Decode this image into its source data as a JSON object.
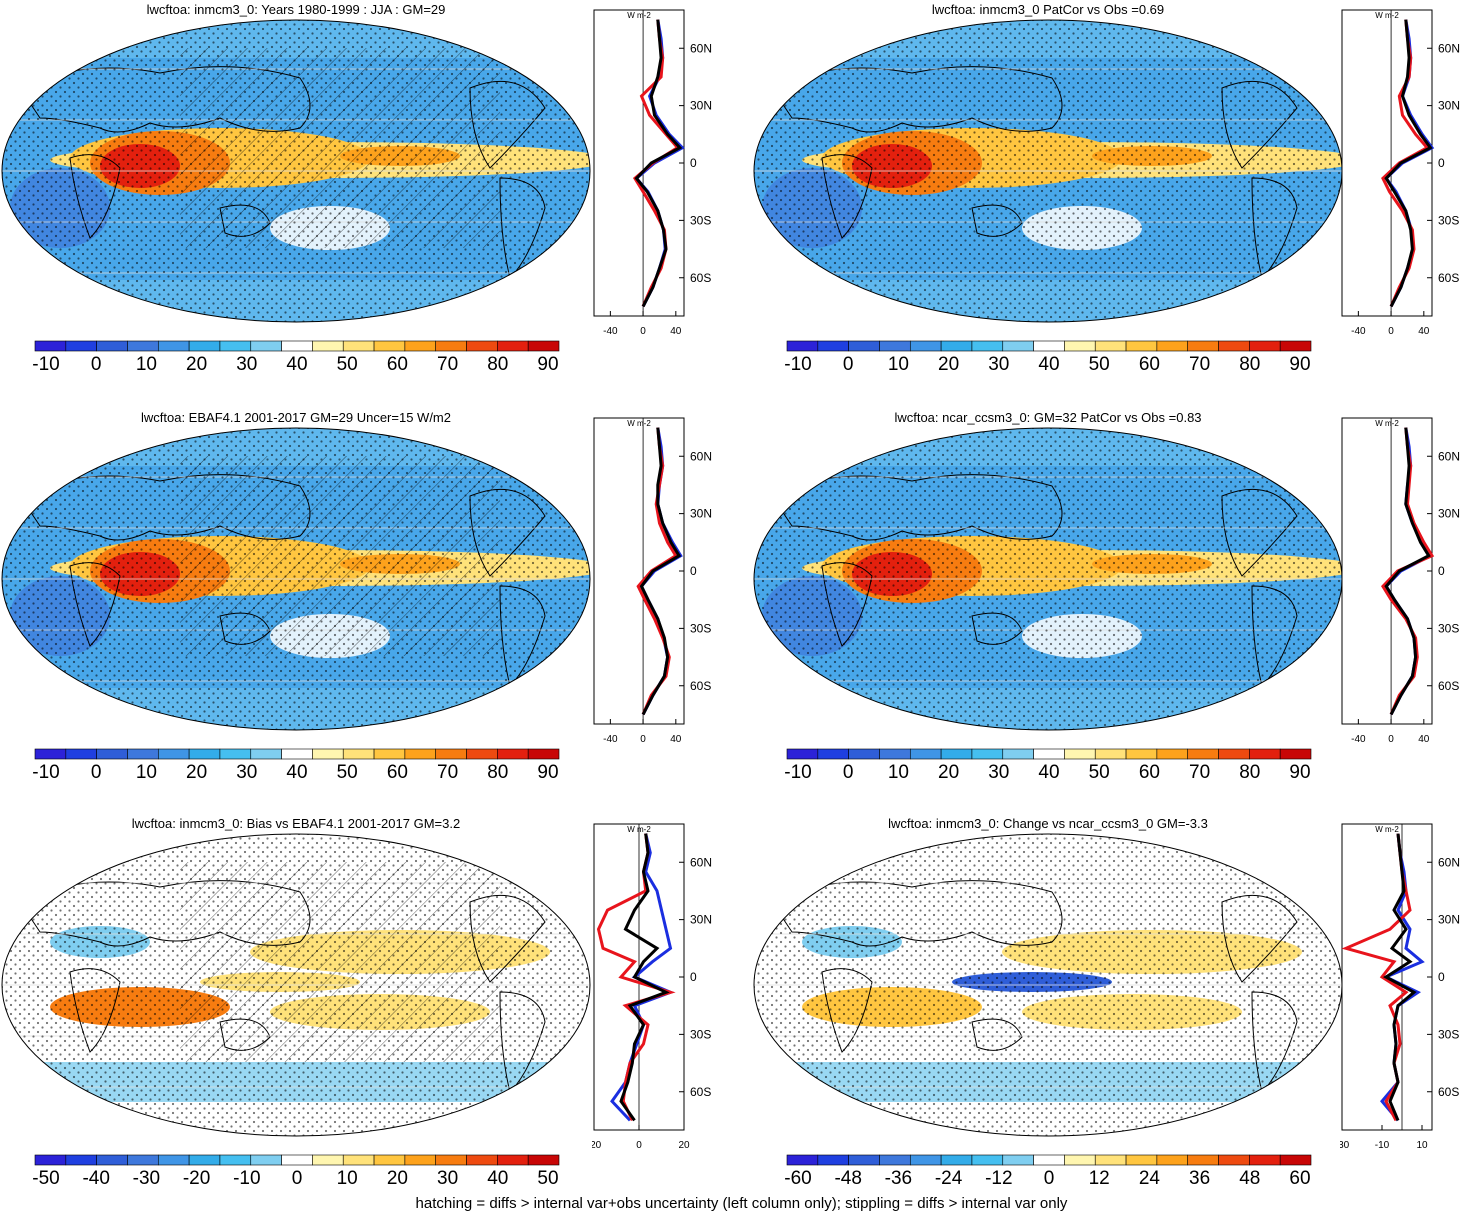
{
  "colors": {
    "palette": [
      "#2c22d8",
      "#1f3fe0",
      "#2f5ed8",
      "#3e78dc",
      "#3f95e6",
      "#33ace9",
      "#45bff0",
      "#7fcef0",
      "#ffffff",
      "#fff6b0",
      "#ffe27a",
      "#ffc640",
      "#fda21c",
      "#f77c10",
      "#ee4a10",
      "#e3200e",
      "#c80606"
    ],
    "ocean_blue": "#4aa8e8",
    "obs_line": "#000000",
    "model_line": "#e8141c",
    "ref_line": "#1a2ee0"
  },
  "panels": [
    {
      "id": "p1",
      "title": "lwcftoa: inmcm3_0: Years 1980-1999 : JJA : GM=29",
      "colorbar_labels": [
        "-10",
        "0",
        "10",
        "20",
        "30",
        "40",
        "50",
        "60",
        "70",
        "80",
        "90"
      ],
      "zonal_x_ticks": [
        "-40",
        "0",
        "40"
      ],
      "zonal_y_ticks": [
        "60N",
        "30N",
        "0",
        "30S",
        "60S"
      ],
      "zonal_unit": "W m-2",
      "chart_data": {
        "type": "heatmap",
        "variable": "lwcftoa",
        "lat_ticks": [
          "60N",
          "30N",
          "0",
          "30S",
          "60S"
        ],
        "xlim": [
          -60,
          50
        ],
        "lats": [
          75,
          65,
          55,
          45,
          35,
          25,
          15,
          8,
          0,
          -8,
          -15,
          -25,
          -35,
          -45,
          -55,
          -65,
          -75
        ],
        "series": [
          {
            "color": "black",
            "values": [
              18,
              20,
              22,
              18,
              10,
              14,
              30,
              45,
              10,
              -8,
              5,
              18,
              25,
              28,
              20,
              12,
              0
            ]
          },
          {
            "color": "red",
            "values": [
              18,
              20,
              24,
              22,
              -2,
              8,
              28,
              42,
              12,
              -10,
              0,
              14,
              26,
              28,
              22,
              10,
              0
            ]
          },
          {
            "color": "blue",
            "values": [
              18,
              22,
              24,
              20,
              8,
              16,
              32,
              48,
              14,
              -8,
              6,
              18,
              25,
              27,
              20,
              12,
              0
            ]
          }
        ]
      }
    },
    {
      "id": "p2",
      "title": "lwcftoa: inmcm3_0 PatCor vs Obs =0.69",
      "colorbar_labels": [
        "-10",
        "0",
        "10",
        "20",
        "30",
        "40",
        "50",
        "60",
        "70",
        "80",
        "90"
      ],
      "zonal_x_ticks": [
        "-40",
        "0",
        "40"
      ],
      "zonal_y_ticks": [
        "60N",
        "30N",
        "0",
        "30S",
        "60S"
      ],
      "zonal_unit": "W m-2",
      "chart_data": {
        "type": "heatmap",
        "variable": "lwcftoa",
        "lat_ticks": [
          "60N",
          "30N",
          "0",
          "30S",
          "60S"
        ],
        "xlim": [
          -60,
          50
        ],
        "lats": [
          75,
          65,
          55,
          45,
          35,
          25,
          15,
          8,
          0,
          -8,
          -15,
          -25,
          -35,
          -45,
          -55,
          -65,
          -75
        ],
        "series": [
          {
            "color": "black",
            "values": [
              18,
              20,
              22,
              20,
              14,
              22,
              36,
              48,
              12,
              -6,
              4,
              18,
              24,
              26,
              20,
              12,
              0
            ]
          },
          {
            "color": "red",
            "values": [
              18,
              20,
              24,
              22,
              10,
              14,
              30,
              44,
              10,
              -10,
              -2,
              14,
              26,
              28,
              22,
              10,
              0
            ]
          },
          {
            "color": "blue",
            "values": [
              18,
              22,
              24,
              22,
              14,
              24,
              38,
              50,
              14,
              -6,
              6,
              18,
              25,
              27,
              20,
              12,
              0
            ]
          }
        ]
      }
    },
    {
      "id": "p3",
      "title": "lwcftoa: EBAF4.1 2001-2017 GM=29 Uncer=15 W/m2",
      "colorbar_labels": [
        "-10",
        "0",
        "10",
        "20",
        "30",
        "40",
        "50",
        "60",
        "70",
        "80",
        "90"
      ],
      "zonal_x_ticks": [
        "-40",
        "0",
        "40"
      ],
      "zonal_y_ticks": [
        "60N",
        "30N",
        "0",
        "30S",
        "60S"
      ],
      "zonal_unit": "W m-2",
      "chart_data": {
        "type": "heatmap",
        "variable": "lwcftoa",
        "lat_ticks": [
          "60N",
          "30N",
          "0",
          "30S",
          "60S"
        ],
        "xlim": [
          -60,
          50
        ],
        "lats": [
          75,
          65,
          55,
          45,
          35,
          25,
          15,
          8,
          0,
          -8,
          -15,
          -25,
          -35,
          -45,
          -55,
          -65,
          -75
        ],
        "series": [
          {
            "color": "black",
            "values": [
              18,
              20,
              22,
              18,
              18,
              24,
              34,
              44,
              12,
              -2,
              6,
              18,
              26,
              30,
              26,
              12,
              0
            ]
          },
          {
            "color": "red",
            "values": [
              18,
              20,
              24,
              20,
              16,
              20,
              30,
              40,
              10,
              -6,
              2,
              14,
              24,
              32,
              28,
              10,
              0
            ]
          },
          {
            "color": "blue",
            "values": [
              18,
              22,
              24,
              20,
              18,
              24,
              36,
              46,
              14,
              -2,
              6,
              18,
              25,
              30,
              26,
              12,
              0
            ]
          }
        ]
      }
    },
    {
      "id": "p4",
      "title": "lwcftoa: ncar_ccsm3_0: GM=32 PatCor vs Obs =0.83",
      "colorbar_labels": [
        "-10",
        "0",
        "10",
        "20",
        "30",
        "40",
        "50",
        "60",
        "70",
        "80",
        "90"
      ],
      "zonal_x_ticks": [
        "-40",
        "0",
        "40"
      ],
      "zonal_y_ticks": [
        "60N",
        "30N",
        "0",
        "30S",
        "60S"
      ],
      "zonal_unit": "W m-2",
      "chart_data": {
        "type": "heatmap",
        "variable": "lwcftoa",
        "lat_ticks": [
          "60N",
          "30N",
          "0",
          "30S",
          "60S"
        ],
        "xlim": [
          -60,
          50
        ],
        "lats": [
          75,
          65,
          55,
          45,
          35,
          25,
          15,
          8,
          0,
          -8,
          -15,
          -25,
          -35,
          -45,
          -55,
          -65,
          -75
        ],
        "series": [
          {
            "color": "black",
            "values": [
              18,
              20,
              22,
              20,
              18,
              26,
              36,
              46,
              10,
              -6,
              4,
              20,
              28,
              30,
              26,
              12,
              0
            ]
          },
          {
            "color": "red",
            "values": [
              18,
              20,
              24,
              22,
              20,
              28,
              40,
              50,
              8,
              -10,
              0,
              18,
              30,
              32,
              28,
              10,
              0
            ]
          },
          {
            "color": "blue",
            "values": [
              18,
              22,
              24,
              20,
              18,
              26,
              38,
              48,
              12,
              -6,
              4,
              20,
              28,
              30,
              26,
              12,
              0
            ]
          }
        ]
      }
    },
    {
      "id": "p5",
      "title": "lwcftoa: inmcm3_0: Bias vs EBAF4.1 2001-2017 GM=3.2",
      "colorbar_labels": [
        "-50",
        "-40",
        "-30",
        "-20",
        "-10",
        "0",
        "10",
        "20",
        "30",
        "40",
        "50"
      ],
      "zonal_x_ticks": [
        "-20",
        "0",
        "20"
      ],
      "zonal_y_ticks": [
        "60N",
        "30N",
        "0",
        "30S",
        "60S"
      ],
      "zonal_unit": "W m-2",
      "chart_data": {
        "type": "heatmap",
        "variable": "lwcftoa",
        "lat_ticks": [
          "60N",
          "30N",
          "0",
          "30S",
          "60S"
        ],
        "xlim": [
          -20,
          20
        ],
        "lats": [
          75,
          65,
          55,
          45,
          35,
          25,
          15,
          8,
          0,
          -8,
          -15,
          -25,
          -35,
          -45,
          -55,
          -65,
          -75
        ],
        "series": [
          {
            "color": "black",
            "values": [
              3,
              4,
              2,
              4,
              -2,
              -6,
              8,
              2,
              -2,
              12,
              -4,
              2,
              -2,
              -3,
              -5,
              -8,
              -2
            ]
          },
          {
            "color": "red",
            "values": [
              3,
              4,
              2,
              3,
              -14,
              -18,
              -16,
              -2,
              -8,
              14,
              -6,
              4,
              2,
              -4,
              -6,
              -7,
              -3
            ]
          },
          {
            "color": "blue",
            "values": [
              3,
              5,
              3,
              8,
              10,
              12,
              14,
              6,
              -2,
              14,
              -2,
              2,
              -1,
              -4,
              -6,
              -12,
              -4
            ]
          }
        ]
      }
    },
    {
      "id": "p6",
      "title": "lwcftoa: inmcm3_0: Change vs ncar_ccsm3_0 GM=-3.3",
      "colorbar_labels": [
        "-60",
        "-48",
        "-36",
        "-24",
        "-12",
        "0",
        "12",
        "24",
        "36",
        "48",
        "60"
      ],
      "zonal_x_ticks": [
        "-30",
        "-10",
        "10"
      ],
      "zonal_y_ticks": [
        "60N",
        "30N",
        "0",
        "30S",
        "60S"
      ],
      "zonal_unit": "W m-2",
      "chart_data": {
        "type": "heatmap",
        "variable": "lwcftoa",
        "lat_ticks": [
          "60N",
          "30N",
          "0",
          "30S",
          "60S"
        ],
        "xlim": [
          -30,
          15
        ],
        "lats": [
          75,
          65,
          55,
          45,
          35,
          25,
          15,
          8,
          0,
          -8,
          -15,
          -25,
          -35,
          -45,
          -55,
          -65,
          -75
        ],
        "series": [
          {
            "color": "black",
            "values": [
              -2,
              -1,
              0,
              1,
              -4,
              2,
              -5,
              4,
              -8,
              6,
              -2,
              -4,
              -3,
              -4,
              -2,
              -6,
              -2
            ]
          },
          {
            "color": "red",
            "values": [
              -2,
              -1,
              0,
              2,
              4,
              -6,
              -28,
              -4,
              -10,
              2,
              -6,
              -2,
              -1,
              -4,
              -2,
              -8,
              -3
            ]
          },
          {
            "color": "blue",
            "values": [
              -2,
              -1,
              1,
              2,
              -2,
              4,
              2,
              10,
              -8,
              8,
              -2,
              -4,
              -3,
              -4,
              -2,
              -10,
              -2
            ]
          }
        ]
      }
    }
  ],
  "footnote": "hatching = diffs > internal var+obs uncertainty (left column only); stippling = diffs > internal var only"
}
